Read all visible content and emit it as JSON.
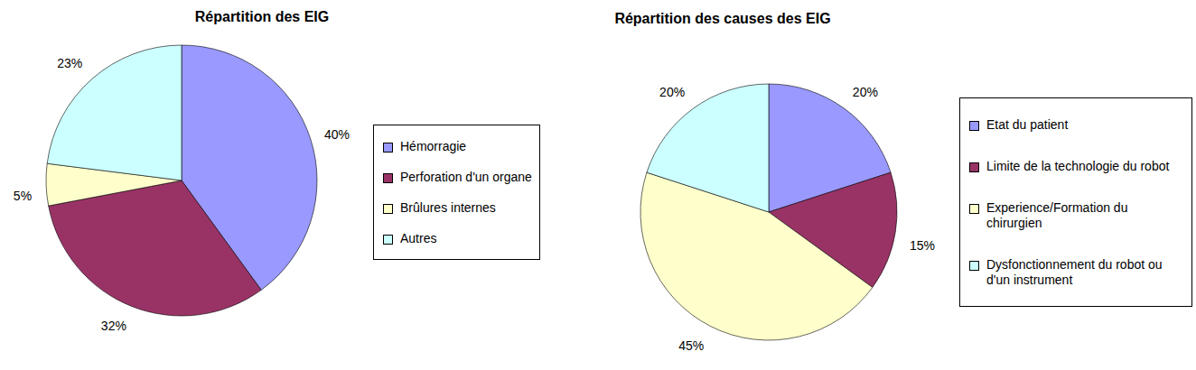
{
  "chart_data": [
    {
      "type": "pie",
      "title": "Répartition des EIG",
      "categories": [
        "Hémorragie",
        "Perforation d'un organe",
        "Brûlures internes",
        "Autres"
      ],
      "values": [
        40,
        32,
        5,
        23
      ],
      "value_labels": [
        "40%",
        "32%",
        "5%",
        "23%"
      ],
      "colors": [
        "#9999ff",
        "#993366",
        "#ffffcc",
        "#ccffff"
      ],
      "data_labels": true,
      "legend": "right"
    },
    {
      "type": "pie",
      "title": "Répartition des causes des EIG",
      "categories": [
        "Etat du patient",
        "Limite de la technologie du robot",
        "Experience/Formation du chirurgien",
        "Dysfonctionnement du robot ou d'un instrument"
      ],
      "values": [
        20,
        15,
        45,
        20
      ],
      "value_labels": [
        "20%",
        "15%",
        "45%",
        "20%"
      ],
      "colors": [
        "#9999ff",
        "#993366",
        "#ffffcc",
        "#ccffff"
      ],
      "data_labels": true,
      "legend": "right"
    }
  ]
}
